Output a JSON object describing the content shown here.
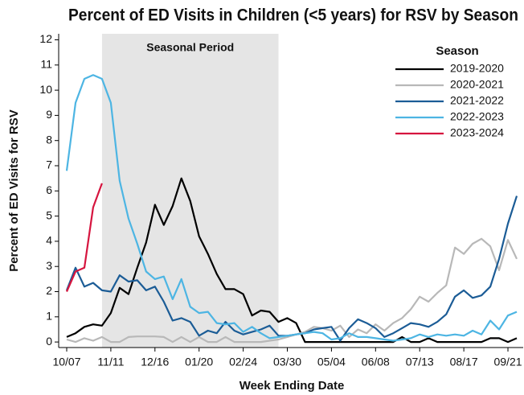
{
  "chart_data": {
    "type": "line",
    "title": "Percent of ED Visits in Children (<5 years) for RSV by Season",
    "x_label": "Week Ending Date",
    "y_label": "Percent of ED Visits for RSV",
    "categories": [
      "10/07",
      null,
      null,
      null,
      null,
      "11/11",
      null,
      null,
      null,
      null,
      "12/16",
      null,
      null,
      null,
      null,
      "01/20",
      null,
      null,
      null,
      null,
      "02/24",
      null,
      null,
      null,
      null,
      "03/30",
      null,
      null,
      null,
      null,
      "05/04",
      null,
      null,
      null,
      null,
      "06/08",
      null,
      null,
      null,
      null,
      "07/13",
      null,
      null,
      null,
      null,
      "08/17",
      null,
      null,
      null,
      null,
      "09/21",
      null
    ],
    "shade": {
      "label": "Seasonal Period",
      "start": 4,
      "end": 24
    },
    "legend_title": "Season",
    "legend": "upper right",
    "ylim": [
      -0.22,
      12.24
    ],
    "yticks": [
      0,
      1,
      2,
      3,
      4,
      5,
      6,
      7,
      8,
      9,
      10,
      11,
      12
    ],
    "series": [
      {
        "name": "2019-2020",
        "color": "#000000",
        "values": [
          0.2,
          0.35,
          0.6,
          0.7,
          0.65,
          1.15,
          2.15,
          1.9,
          2.95,
          3.95,
          5.45,
          4.65,
          5.4,
          6.5,
          5.6,
          4.2,
          3.5,
          2.7,
          2.1,
          2.1,
          1.9,
          1.05,
          1.25,
          1.2,
          0.8,
          0.95,
          0.75,
          0,
          0,
          0,
          0,
          0,
          0,
          0,
          0,
          0,
          0,
          0,
          0.2,
          0,
          0,
          0.15,
          0,
          0,
          0,
          0,
          0,
          0,
          0.15,
          0.15,
          0,
          0.15
        ]
      },
      {
        "name": "2020-2021",
        "color": "#b8b8b8",
        "values": [
          0.1,
          0,
          0.15,
          0.05,
          0.2,
          0,
          0,
          0.2,
          0.22,
          0.22,
          0.22,
          0.2,
          0,
          0.2,
          0,
          0.2,
          0,
          0,
          0.2,
          0,
          0,
          0,
          0,
          0.05,
          0.1,
          0.2,
          0.3,
          0.4,
          0.6,
          0.55,
          0.45,
          0.65,
          0.2,
          0.5,
          0.35,
          0.7,
          0.45,
          0.75,
          0.95,
          1.3,
          1.8,
          1.6,
          1.95,
          2.25,
          3.75,
          3.5,
          3.9,
          4.1,
          3.8,
          2.85,
          4.05,
          3.3
        ]
      },
      {
        "name": "2021-2022",
        "color": "#1b5c96",
        "values": [
          2.05,
          2.95,
          2.2,
          2.35,
          2.05,
          2.0,
          2.65,
          2.4,
          2.45,
          2.05,
          2.2,
          1.6,
          0.85,
          0.95,
          0.8,
          0.25,
          0.45,
          0.35,
          0.8,
          0.45,
          0.3,
          0.4,
          0.5,
          0.65,
          0.25,
          0.25,
          0.3,
          0.35,
          0.5,
          0.55,
          0.6,
          0.05,
          0.55,
          0.9,
          0.75,
          0.55,
          0.2,
          0.35,
          0.55,
          0.75,
          0.7,
          0.6,
          0.8,
          1.1,
          1.8,
          2.05,
          1.75,
          1.85,
          2.2,
          3.3,
          4.7,
          5.8
        ]
      },
      {
        "name": "2022-2023",
        "color": "#4db5e3",
        "values": [
          6.8,
          9.5,
          10.45,
          10.6,
          10.45,
          9.5,
          6.4,
          4.9,
          3.9,
          2.8,
          2.5,
          2.6,
          1.7,
          2.5,
          1.4,
          1.15,
          1.2,
          0.75,
          0.7,
          0.75,
          0.4,
          0.6,
          0.35,
          0.15,
          0.2,
          0.25,
          0.3,
          0.35,
          0.4,
          0.35,
          0.1,
          0.15,
          0.35,
          0.2,
          0.2,
          0.15,
          0.1,
          0.05,
          0.1,
          0.15,
          0.3,
          0.2,
          0.3,
          0.25,
          0.3,
          0.25,
          0.45,
          0.3,
          0.85,
          0.5,
          1.05,
          1.2
        ]
      },
      {
        "name": "2023-2024",
        "color": "#d6153f",
        "values": [
          2.0,
          2.8,
          2.95,
          5.35,
          6.3,
          null,
          null,
          null,
          null,
          null,
          null,
          null,
          null,
          null,
          null,
          null,
          null,
          null,
          null,
          null,
          null,
          null,
          null,
          null,
          null,
          null,
          null,
          null,
          null,
          null,
          null,
          null,
          null,
          null,
          null,
          null,
          null,
          null,
          null,
          null,
          null,
          null,
          null,
          null,
          null,
          null,
          null,
          null,
          null,
          null,
          null,
          null
        ]
      }
    ]
  }
}
